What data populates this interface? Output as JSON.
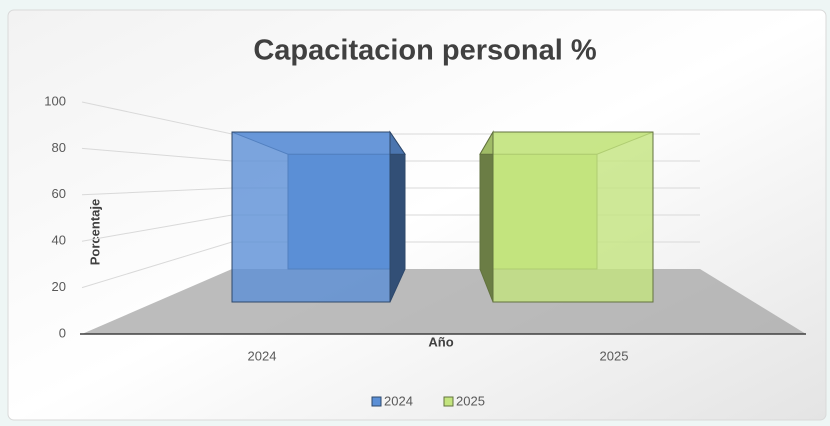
{
  "chart_data": {
    "type": "bar3d",
    "title": "Capacitacion personal %",
    "y_label": "Porcentaje",
    "x_label": "Año",
    "categories": [
      "2024",
      "2025"
    ],
    "series": [
      {
        "name": "2024",
        "color": "#5b8fd6",
        "values": [
          85,
          null
        ]
      },
      {
        "name": "2025",
        "color": "#c3e47e",
        "values": [
          null,
          85
        ]
      }
    ],
    "ylim": [
      0,
      100
    ],
    "yticks": [
      0,
      20,
      40,
      60,
      80,
      100
    ],
    "grid": true,
    "legend": "bottom"
  }
}
